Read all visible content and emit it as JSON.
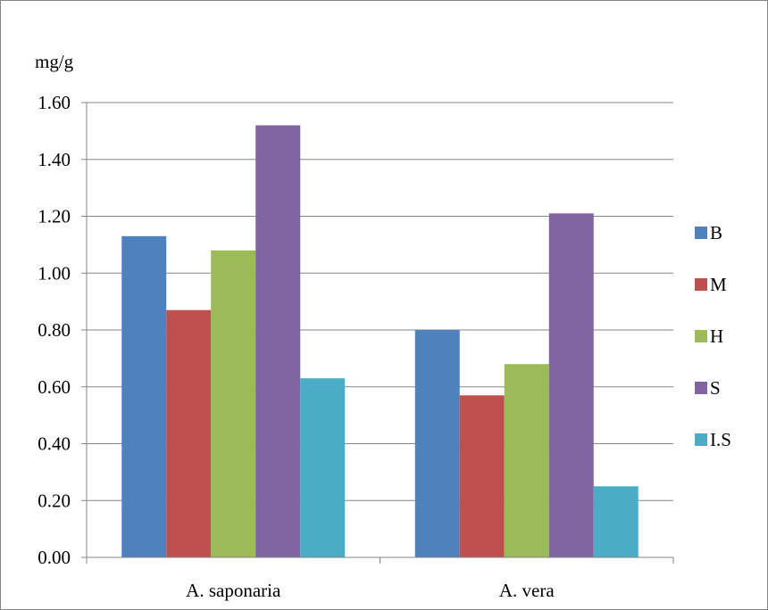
{
  "chart_data": {
    "type": "bar",
    "ylabel": "mg/g",
    "categories": [
      "A. saponaria",
      "A. vera"
    ],
    "series": [
      {
        "name": "B",
        "color": "#4F81BD",
        "values": [
          1.13,
          0.8
        ]
      },
      {
        "name": "M",
        "color": "#C0504D",
        "values": [
          0.87,
          0.57
        ]
      },
      {
        "name": "H",
        "color": "#9BBB59",
        "values": [
          1.08,
          0.68
        ]
      },
      {
        "name": "S",
        "color": "#8064A2",
        "values": [
          1.52,
          1.21
        ]
      },
      {
        "name": "I.S",
        "color": "#4BACC6",
        "values": [
          0.63,
          0.25
        ]
      }
    ],
    "ylim": [
      0,
      1.6
    ],
    "yticks": [
      "0.00",
      "0.20",
      "0.40",
      "0.60",
      "0.80",
      "1.00",
      "1.20",
      "1.40",
      "1.60"
    ],
    "grid": true,
    "legend_position": "right"
  }
}
